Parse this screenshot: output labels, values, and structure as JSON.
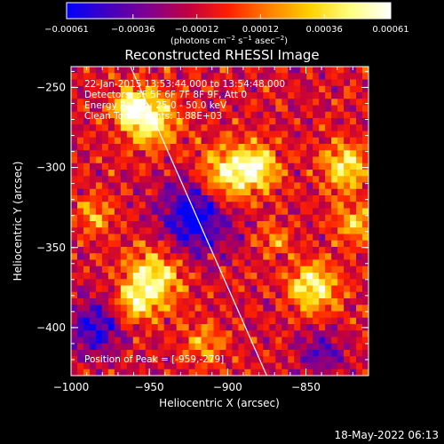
{
  "chart_data": {
    "type": "heatmap",
    "title": "Reconstructed RHESSI Image",
    "xlabel": "Heliocentric X (arcsec)",
    "ylabel": "Heliocentric Y (arcsec)",
    "xlim": [
      -1000,
      -810
    ],
    "ylim": [
      -430,
      -237
    ],
    "x_ticks": [
      {
        "value": -1000,
        "label": "−1000"
      },
      {
        "value": -950,
        "label": "−950"
      },
      {
        "value": -900,
        "label": "−900"
      },
      {
        "value": -850,
        "label": "−850"
      }
    ],
    "y_ticks": [
      {
        "value": -250,
        "label": "−250"
      },
      {
        "value": -300,
        "label": "−300"
      },
      {
        "value": -350,
        "label": "−350"
      },
      {
        "value": -400,
        "label": "−400"
      }
    ],
    "colorbar": {
      "range": [
        -0.00061,
        0.00061
      ],
      "ticks": [
        {
          "value": -0.00061,
          "label": "−0.00061"
        },
        {
          "value": -0.00036,
          "label": "−0.00036"
        },
        {
          "value": -0.00012,
          "label": "−0.00012"
        },
        {
          "value": 0.00012,
          "label": "0.00012"
        },
        {
          "value": 0.00036,
          "label": "0.00036"
        },
        {
          "value": 0.00061,
          "label": "0.00061"
        }
      ],
      "unit_label": {
        "base": "(photons cm",
        "exp1": "−2",
        "mid1": " s",
        "exp2": "−1",
        "mid2": " asec",
        "exp3": "−2",
        "end": ")"
      },
      "colors": [
        "#0000ff",
        "#4000c0",
        "#800090",
        "#c00040",
        "#ff2000",
        "#ff8000",
        "#ffd000",
        "#ffff80",
        "#ffffff"
      ]
    },
    "annotations": [
      "22-Jan-2015 13:53:44.000 to 13:54:48.000",
      "Detectors: 3F 5F 6F 7F 8F 9F, Att 0",
      "Energy Range: 25.0 - 50.0 keV",
      "Clean    Total counts: 1.88E+03"
    ],
    "peak_label": "Position of Peak = [-959,-279]",
    "limb_line": [
      {
        "x": -962,
        "y": -237
      },
      {
        "x": -875,
        "y": -430
      }
    ],
    "sources": [
      {
        "x": -950,
        "y": -270,
        "peak": 1.0,
        "sigma": 12
      },
      {
        "x": -962,
        "y": -262,
        "peak": 0.85,
        "sigma": 7
      },
      {
        "x": -900,
        "y": -305,
        "peak": 0.95,
        "sigma": 13
      },
      {
        "x": -880,
        "y": -300,
        "peak": 0.8,
        "sigma": 9
      },
      {
        "x": -948,
        "y": -370,
        "peak": 0.95,
        "sigma": 13
      },
      {
        "x": -960,
        "y": -385,
        "peak": 0.6,
        "sigma": 8
      },
      {
        "x": -845,
        "y": -375,
        "peak": 0.95,
        "sigma": 11
      },
      {
        "x": -825,
        "y": -300,
        "peak": 0.85,
        "sigma": 10
      },
      {
        "x": -818,
        "y": -335,
        "peak": 0.65,
        "sigma": 9
      },
      {
        "x": -985,
        "y": -330,
        "peak": 0.55,
        "sigma": 8
      },
      {
        "x": -870,
        "y": -345,
        "peak": 0.45,
        "sigma": 7
      },
      {
        "x": -915,
        "y": -410,
        "peak": 0.5,
        "sigma": 9
      }
    ],
    "dark_regions": [
      {
        "x": -920,
        "y": -330,
        "depth": 0.9,
        "sigma": 16
      },
      {
        "x": -985,
        "y": -400,
        "depth": 0.7,
        "sigma": 12
      },
      {
        "x": -840,
        "y": -415,
        "depth": 0.5,
        "sigma": 10
      }
    ]
  },
  "footer": {
    "timestamp": "18-May-2022 06:13"
  }
}
